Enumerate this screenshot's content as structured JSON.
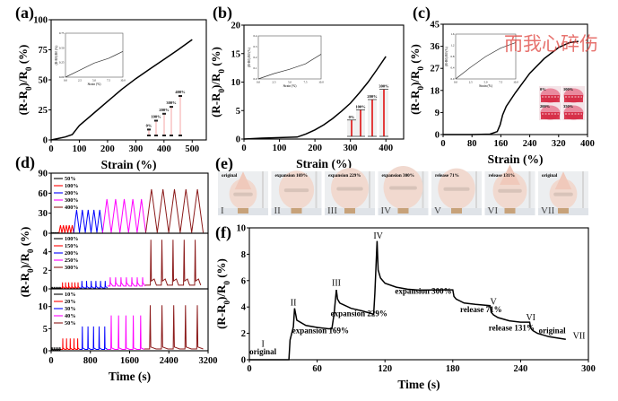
{
  "watermark": "而我心碎伤",
  "panels": {
    "a": {
      "label": "(a)"
    },
    "b": {
      "label": "(b)"
    },
    "c": {
      "label": "(c)"
    },
    "d": {
      "label": "(d)"
    },
    "e": {
      "label": "(e)"
    },
    "f": {
      "label": "(f)"
    }
  },
  "chart_data": [
    {
      "id": "a",
      "type": "line",
      "title": "",
      "xlabel": "Strain (%)",
      "ylabel": "(R-R0)/R0 (%)",
      "xlim": [
        0,
        550
      ],
      "ylim": [
        0,
        100
      ],
      "xticks": [
        0,
        100,
        200,
        300,
        400,
        500
      ],
      "yticks": [
        0,
        25,
        50,
        75,
        100
      ],
      "ytick_labels": [
        "0",
        "25",
        "50",
        "75",
        "100"
      ],
      "x": [
        0,
        25,
        50,
        75,
        90,
        100,
        150,
        200,
        250,
        300,
        350,
        400,
        450,
        500
      ],
      "y": [
        0,
        1.2,
        2.5,
        4.5,
        9,
        12,
        22,
        32,
        42,
        51,
        59,
        67,
        75,
        83.5
      ],
      "inset": {
        "xlabel": "Strain (%)",
        "ylabel": "(R-R0)/R0 (%)",
        "xlim": [
          0,
          10
        ],
        "ylim": [
          0,
          0.75
        ],
        "xtick_labels": [
          "0.0",
          "2.5",
          "5.0",
          "7.5",
          "10.0"
        ],
        "ytick_labels": [
          "0.00",
          "0.25",
          "0.50",
          "0.75"
        ],
        "x": [
          0,
          2.5,
          5,
          7.5,
          10
        ],
        "y": [
          0,
          0.12,
          0.24,
          0.32,
          0.44
        ]
      },
      "photo_labels": [
        "0%",
        "100%",
        "200%",
        "300%",
        "400%"
      ],
      "photo_heights": [
        0.12,
        0.3,
        0.44,
        0.58,
        0.8
      ]
    },
    {
      "id": "b",
      "type": "line",
      "xlabel": "Strain (%)",
      "ylabel": "(R-R0)/R0 (%)",
      "xlim": [
        0,
        450
      ],
      "ylim": [
        0,
        20
      ],
      "xticks": [
        0,
        100,
        200,
        300,
        400
      ],
      "yticks": [
        0,
        5,
        10,
        15,
        20
      ],
      "ytick_labels": [
        "0",
        "5",
        "10",
        "15",
        "20"
      ],
      "x": [
        0,
        50,
        100,
        150,
        175,
        200,
        225,
        250,
        275,
        300,
        325,
        350,
        375,
        400
      ],
      "y": [
        0,
        0.15,
        0.25,
        0.35,
        0.9,
        1.6,
        2.5,
        3.6,
        4.9,
        6.3,
        8.1,
        10.0,
        12.2,
        14.5
      ],
      "inset": {
        "xlabel": "Strain (%)",
        "ylabel": "(R-R0)/R0 (%)",
        "xlim": [
          0,
          10
        ],
        "ylim": [
          0,
          0.4
        ],
        "xtick_labels": [
          "0.0",
          "2.5",
          "5.0",
          "7.5",
          "10.0"
        ],
        "ytick_labels": [
          "0.0",
          "0.1",
          "0.2",
          "0.3",
          "0.4"
        ],
        "x": [
          0,
          2.5,
          5,
          7.5,
          10
        ],
        "y": [
          0,
          0.05,
          0.09,
          0.14,
          0.23
        ]
      },
      "photo_labels": [
        "0%",
        "100%",
        "200%",
        "300%"
      ],
      "photo_heights": [
        0.32,
        0.52,
        0.72,
        0.92
      ]
    },
    {
      "id": "c",
      "type": "line",
      "xlabel": "Strain (%)",
      "ylabel": "(R-R0)/R0 (%)",
      "xlim": [
        0,
        400
      ],
      "ylim": [
        0,
        45
      ],
      "xticks": [
        0,
        80,
        160,
        240,
        320,
        400
      ],
      "yticks": [
        0,
        9,
        18,
        27,
        36,
        45
      ],
      "ytick_labels": [
        "0",
        "9",
        "18",
        "27",
        "36",
        "45"
      ],
      "x": [
        0,
        80,
        130,
        150,
        158,
        165,
        175,
        200,
        240,
        280,
        320,
        350,
        375
      ],
      "y": [
        0,
        0,
        0.2,
        1.2,
        4,
        8,
        11.5,
        17,
        25,
        31,
        35.5,
        37.5,
        38
      ],
      "inset": {
        "xlabel": "Strain (%)",
        "ylabel": "(R-R0)/R0 (%)",
        "xlim": [
          0,
          10
        ],
        "ylim": [
          0,
          1.6
        ],
        "xtick_labels": [
          "0.0",
          "2.5",
          "5.0",
          "7.5",
          "10.0"
        ],
        "ytick_labels": [
          "0.0",
          "0.4",
          "0.8",
          "1.2",
          "1.6"
        ],
        "x": [
          0,
          2.5,
          5,
          7.5,
          10
        ],
        "y": [
          0,
          0.42,
          0.8,
          1.1,
          1.3
        ]
      },
      "photo_labels": [
        "0%",
        "100%",
        "200%",
        "350%"
      ]
    },
    {
      "id": "d",
      "type": "line",
      "xlabel": "Time (s)",
      "ylabel": "(R-R0)/R0 (%)",
      "xlim": [
        0,
        3200
      ],
      "xticks": [
        0,
        800,
        1600,
        2400,
        3200
      ],
      "subplots": [
        {
          "ylim": [
            0,
            90
          ],
          "yticks": [
            0,
            30,
            60,
            90
          ],
          "series": [
            {
              "name": "50%",
              "color": "#000000",
              "t": [
                0,
                160
              ],
              "peaks": 5,
              "peak": 1,
              "base": 0.3
            },
            {
              "name": "100%",
              "color": "#ff0000",
              "t": [
                160,
                460
              ],
              "peaks": 5,
              "peak": 12,
              "base": 0.5
            },
            {
              "name": "200%",
              "color": "#0000ff",
              "t": [
                460,
                1050
              ],
              "peaks": 5,
              "peak": 35,
              "base": 1
            },
            {
              "name": "300%",
              "color": "#ff00ff",
              "t": [
                1050,
                1930
              ],
              "peaks": 5,
              "peak": 51,
              "base": 1
            },
            {
              "name": "400%",
              "color": "#8b1a1a",
              "t": [
                1930,
                3100
              ],
              "peaks": 5,
              "peak": 66,
              "base": 1
            }
          ]
        },
        {
          "ylim": [
            0,
            6
          ],
          "yticks": [
            0,
            2,
            4
          ],
          "series": [
            {
              "name": "100%",
              "color": "#000000",
              "t": [
                0,
                200
              ],
              "peaks": 5,
              "peak": 0.2,
              "base": 0.05
            },
            {
              "name": "150%",
              "color": "#ff0000",
              "t": [
                200,
                580
              ],
              "peaks": 6,
              "peak": 0.7,
              "base": 0.1
            },
            {
              "name": "200%",
              "color": "#0000ff",
              "t": [
                580,
                1150
              ],
              "peaks": 6,
              "peak": 0.85,
              "base": 0.1
            },
            {
              "name": "250%",
              "color": "#ff00ff",
              "t": [
                1150,
                1920
              ],
              "peaks": 7,
              "peak": 1.25,
              "base": 0.3
            },
            {
              "name": "300%",
              "color": "#8b1a1a",
              "t": [
                1920,
                3050
              ],
              "peaks": 5,
              "peak": 5.3,
              "base": 0.4
            }
          ]
        },
        {
          "ylim": [
            0,
            14
          ],
          "yticks": [
            0,
            5,
            10
          ],
          "series": [
            {
              "name": "10%",
              "color": "#000000",
              "t": [
                0,
                200
              ],
              "peaks": 5,
              "peak": 0.8,
              "base": 0.2
            },
            {
              "name": "20%",
              "color": "#ff0000",
              "t": [
                200,
                580
              ],
              "peaks": 5,
              "peak": 2.8,
              "base": 0.3
            },
            {
              "name": "30%",
              "color": "#0000ff",
              "t": [
                580,
                1150
              ],
              "peaks": 5,
              "peak": 5.5,
              "base": 0.3
            },
            {
              "name": "40%",
              "color": "#ff00ff",
              "t": [
                1150,
                1900
              ],
              "peaks": 5,
              "peak": 8.0,
              "base": 0.3
            },
            {
              "name": "50%",
              "color": "#8b1a1a",
              "t": [
                1900,
                3100
              ],
              "peaks": 5,
              "peak": 10.3,
              "base": 0.4
            }
          ]
        }
      ]
    },
    {
      "id": "f",
      "type": "line",
      "xlabel": "Time (s)",
      "ylabel": "(R-R0)/R0 (%)",
      "xlim": [
        0,
        300
      ],
      "ylim": [
        0,
        10
      ],
      "xticks": [
        0,
        60,
        120,
        180,
        240,
        300
      ],
      "yticks": [
        0,
        2,
        4,
        6,
        8,
        10
      ],
      "x": [
        0,
        35,
        36,
        39,
        40,
        42,
        50,
        60,
        70,
        73,
        75,
        77,
        78,
        80,
        90,
        100,
        110,
        111,
        113,
        114,
        116,
        120,
        130,
        140,
        150,
        170,
        180,
        181,
        183,
        190,
        200,
        213,
        214,
        216,
        220,
        230,
        240,
        248,
        249,
        251,
        255,
        265,
        280
      ],
      "y": [
        0,
        0,
        1.5,
        2.5,
        3.9,
        3.0,
        2.6,
        2.45,
        2.35,
        2.35,
        3.5,
        5.3,
        4.6,
        4.3,
        3.9,
        3.7,
        3.45,
        5.0,
        9.0,
        6.8,
        6.2,
        5.8,
        5.5,
        5.35,
        5.28,
        5.3,
        5.3,
        4.8,
        4.6,
        4.3,
        4.2,
        4.1,
        3.6,
        3.4,
        3.2,
        2.95,
        2.85,
        2.85,
        2.4,
        2.2,
        2.0,
        1.75,
        1.55
      ],
      "annotations": [
        {
          "roman": "I",
          "text": "original",
          "x": 12,
          "y": 0.4
        },
        {
          "roman": "II",
          "text": "expansion 169%",
          "x": 63,
          "y": 2.0
        },
        {
          "roman": "III",
          "text": "expansion 229%",
          "x": 97,
          "y": 3.3
        },
        {
          "roman": "IV",
          "text": "expansion 300%",
          "x": 154,
          "y": 5.0
        },
        {
          "roman": "V",
          "text": "release 71%",
          "x": 205,
          "y": 3.6
        },
        {
          "roman": "VI",
          "text": "release 131%",
          "x": 232,
          "y": 2.2
        },
        {
          "roman": "VII",
          "text": "original",
          "x": 268,
          "y": 2.0
        }
      ]
    }
  ],
  "photos_e": [
    {
      "caption": "original",
      "roman": "I",
      "size": 0.45,
      "tip": true
    },
    {
      "caption": "expansion 169%",
      "roman": "II",
      "size": 0.8,
      "tip": false
    },
    {
      "caption": "expansion 229%",
      "roman": "III",
      "size": 0.92,
      "tip": false
    },
    {
      "caption": "expansion 300%",
      "roman": "IV",
      "size": 1.0,
      "tip": false
    },
    {
      "caption": "release 71%",
      "roman": "V",
      "size": 0.9,
      "tip": false
    },
    {
      "caption": "release 131%",
      "roman": "VI",
      "size": 0.75,
      "tip": true
    },
    {
      "caption": "original",
      "roman": "VII",
      "size": 0.45,
      "tip": true
    }
  ]
}
